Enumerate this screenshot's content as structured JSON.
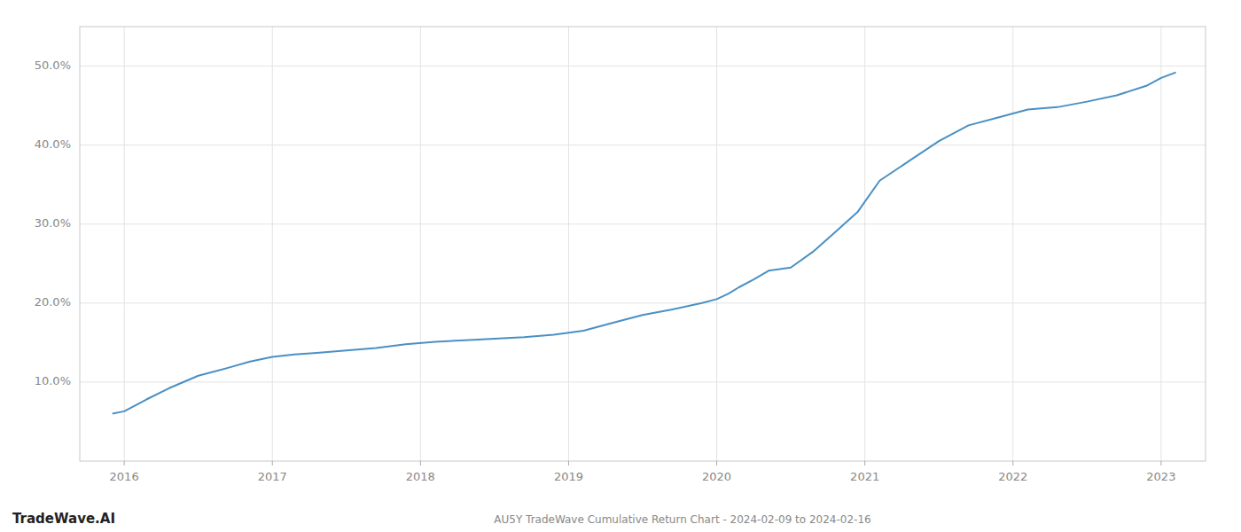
{
  "chart_data": {
    "type": "line",
    "title": "AU5Y TradeWave Cumulative Return Chart - 2024-02-09 to 2024-02-16",
    "annotations": [
      "TradeWave.AI"
    ],
    "color": "#4a90c4",
    "grid": true,
    "x": [
      2015.92,
      2016.0,
      2016.15,
      2016.3,
      2016.5,
      2016.7,
      2016.85,
      2017.0,
      2017.15,
      2017.3,
      2017.5,
      2017.7,
      2017.9,
      2018.1,
      2018.3,
      2018.5,
      2018.7,
      2018.9,
      2019.1,
      2019.3,
      2019.5,
      2019.7,
      2019.9,
      2020.0,
      2020.08,
      2020.15,
      2020.25,
      2020.35,
      2020.5,
      2020.65,
      2020.8,
      2020.95,
      2021.1,
      2021.3,
      2021.5,
      2021.7,
      2021.9,
      2022.1,
      2022.3,
      2022.5,
      2022.7,
      2022.9,
      2023.0,
      2023.1
    ],
    "values": [
      6.0,
      6.3,
      7.8,
      9.2,
      10.8,
      11.8,
      12.6,
      13.2,
      13.5,
      13.7,
      14.0,
      14.3,
      14.8,
      15.1,
      15.3,
      15.5,
      15.7,
      16.0,
      16.5,
      17.5,
      18.5,
      19.2,
      20.0,
      20.5,
      21.2,
      22.0,
      23.0,
      24.1,
      24.5,
      26.5,
      29.0,
      31.5,
      35.5,
      38.0,
      40.5,
      42.5,
      43.5,
      44.5,
      44.8,
      45.5,
      46.3,
      47.5,
      48.5,
      49.2
    ],
    "xlim": [
      2015.7,
      2023.3
    ],
    "ylim": [
      0,
      55
    ],
    "xticks": [
      2016,
      2017,
      2018,
      2019,
      2020,
      2021,
      2022,
      2023
    ],
    "yticks": [
      {
        "value": 10.0,
        "label": "10.0%"
      },
      {
        "value": 20.0,
        "label": "20.0%"
      },
      {
        "value": 30.0,
        "label": "30.0%"
      },
      {
        "value": 40.0,
        "label": "40.0%"
      },
      {
        "value": 50.0,
        "label": "50.0%"
      }
    ]
  }
}
